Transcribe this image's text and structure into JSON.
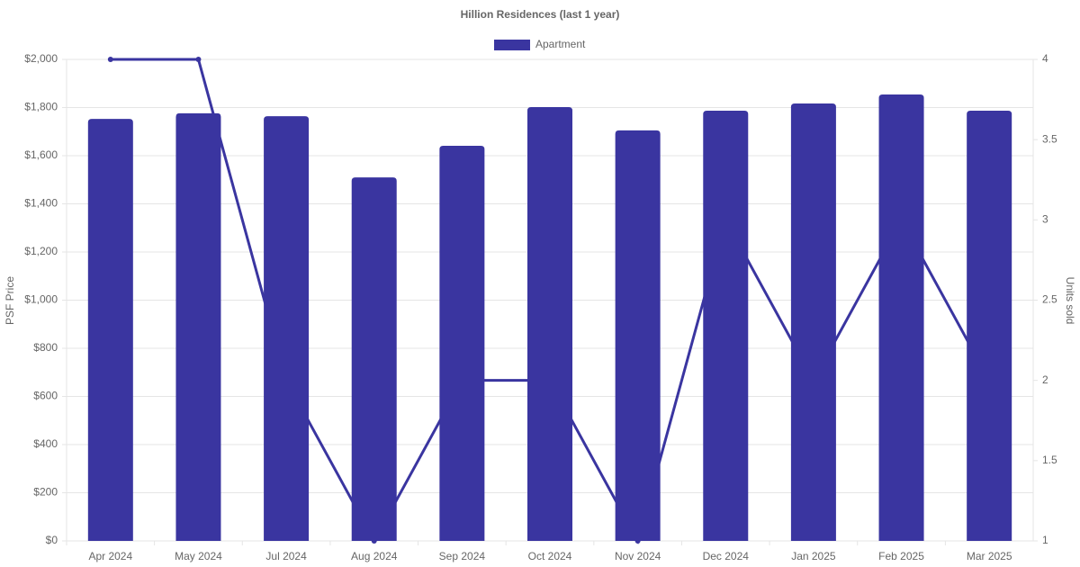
{
  "chart_data": {
    "type": "bar",
    "title": "Hillion Residences (last 1 year)",
    "categories": [
      "Apr 2024",
      "May 2024",
      "Jul 2024",
      "Aug 2024",
      "Sep 2024",
      "Oct 2024",
      "Nov 2024",
      "Dec 2024",
      "Jan 2025",
      "Feb 2025",
      "Mar 2025"
    ],
    "series": [
      {
        "name": "Apartment",
        "type": "bar",
        "color": "#3a35a0",
        "values": [
          1753,
          1776,
          1764,
          1510,
          1641,
          1802,
          1705,
          1787,
          1817,
          1854,
          1787
        ]
      },
      {
        "type": "line",
        "axis": "y2",
        "color": "#3a35a0",
        "values": [
          4,
          4,
          2,
          1,
          2,
          2,
          1,
          3,
          2,
          3,
          2
        ]
      }
    ],
    "ylabel": "PSF Price",
    "y2label": "Units sold",
    "ylim": [
      0,
      2000
    ],
    "yticks": [
      {
        "value": 0,
        "label": "$0"
      },
      {
        "value": 200,
        "label": "$200"
      },
      {
        "value": 400,
        "label": "$400"
      },
      {
        "value": 600,
        "label": "$600"
      },
      {
        "value": 800,
        "label": "$800"
      },
      {
        "value": 1000,
        "label": "$1,000"
      },
      {
        "value": 1200,
        "label": "$1,200"
      },
      {
        "value": 1400,
        "label": "$1,400"
      },
      {
        "value": 1600,
        "label": "$1,600"
      },
      {
        "value": 1800,
        "label": "$1,800"
      },
      {
        "value": 2000,
        "label": "$2,000"
      }
    ],
    "y2lim": [
      1,
      4
    ],
    "y2ticks": [
      1,
      1.5,
      2,
      2.5,
      3,
      3.5,
      4
    ],
    "grid": true
  }
}
